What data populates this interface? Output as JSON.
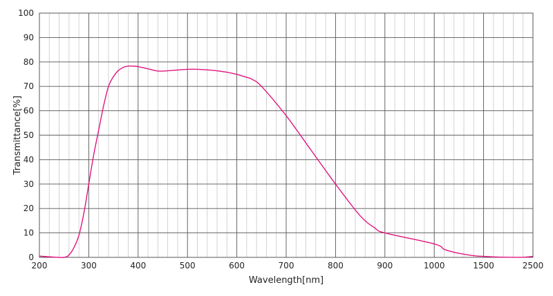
{
  "chart_data": {
    "type": "line",
    "xlabel": "Wavelength[nm]",
    "ylabel": "Transmittance[%]",
    "ylim": [
      0,
      100
    ],
    "y_ticks": [
      0,
      10,
      20,
      30,
      40,
      50,
      60,
      70,
      80,
      90,
      100
    ],
    "x_ticks": [
      200,
      300,
      400,
      500,
      600,
      700,
      800,
      900,
      1000,
      1500,
      2500
    ],
    "x_ticks_note": "segmented axis: 200-1000 linear, then 1000-1500, then 1500-2500",
    "grid": true,
    "colors": {
      "line": "#e0157f",
      "major_grid": "#555555",
      "minor_grid": "#c8c8c8"
    },
    "series": [
      {
        "x": [
          200,
          230,
          250,
          260,
          270,
          280,
          290,
          300,
          310,
          320,
          330,
          340,
          350,
          360,
          370,
          380,
          390,
          400,
          420,
          440,
          460,
          480,
          500,
          520,
          550,
          580,
          600,
          620,
          630,
          650,
          700,
          750,
          800,
          850,
          880,
          900,
          1000,
          1100,
          1200,
          1300,
          1400,
          1500,
          1700,
          2000,
          2300,
          2500
        ],
        "y": [
          0.5,
          0.1,
          0,
          1,
          4,
          9,
          18,
          30,
          42,
          52,
          62,
          70,
          74,
          76.5,
          77.8,
          78.3,
          78.3,
          78.1,
          77.2,
          76.3,
          76.4,
          76.7,
          77,
          77,
          76.6,
          75.8,
          74.9,
          73.7,
          73,
          70,
          58,
          44,
          30,
          17,
          12,
          10,
          5.5,
          3.3,
          2.1,
          1.3,
          0.7,
          0.4,
          0.2,
          0.05,
          0.05,
          0.4
        ]
      }
    ]
  }
}
